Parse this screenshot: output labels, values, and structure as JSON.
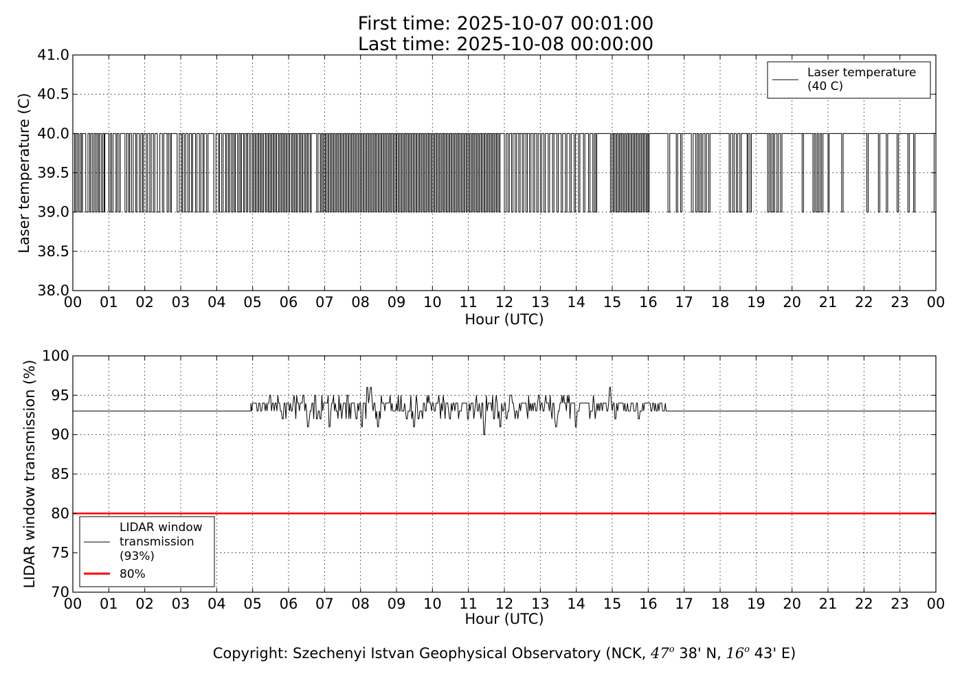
{
  "header": {
    "title_line1": "First time: 2025-10-07 00:01:00",
    "title_line2": "Last time: 2025-10-08 00:00:00"
  },
  "footer": {
    "copyright_prefix": "Copyright: Szechenyi Istvan Geophysical Observatory (NCK, ",
    "lat_deg": "47",
    "lat_min": " 38' N, ",
    "lon_deg": "16",
    "lon_min": " 43' E)",
    "degree_symbol": "o"
  },
  "chart_data": [
    {
      "type": "line",
      "xlabel": "Hour (UTC)",
      "ylabel": "Laser temperature (C)",
      "xlim": [
        0,
        24
      ],
      "ylim": [
        38.0,
        41.0
      ],
      "x_tick_labels": [
        "00",
        "01",
        "02",
        "03",
        "04",
        "05",
        "06",
        "07",
        "08",
        "09",
        "10",
        "11",
        "12",
        "13",
        "14",
        "15",
        "16",
        "17",
        "18",
        "19",
        "20",
        "21",
        "22",
        "23",
        "00"
      ],
      "y_ticks": [
        "38.0",
        "38.5",
        "39.0",
        "39.5",
        "40.0",
        "40.5",
        "41.0"
      ],
      "grid": true,
      "legend_placement": "top-right",
      "legend": {
        "line1": "Laser temperature",
        "line2": "(40 C)"
      },
      "series": [
        {
          "name": "Laser temperature (40 C)",
          "color": "#000000",
          "baseline": 40.0,
          "low_value": 39.0,
          "drop_intervals": [
            [
              0.0,
              0.05
            ],
            [
              0.08,
              0.12
            ],
            [
              0.16,
              0.2
            ],
            [
              0.24,
              0.27
            ],
            [
              0.36,
              0.42
            ],
            [
              0.47,
              0.5
            ],
            [
              0.55,
              0.59
            ],
            [
              0.63,
              0.67
            ],
            [
              0.71,
              0.74
            ],
            [
              0.79,
              0.83
            ],
            [
              0.87,
              0.89
            ],
            [
              1.0,
              1.04
            ],
            [
              1.08,
              1.12
            ],
            [
              1.2,
              1.23
            ],
            [
              1.28,
              1.32
            ],
            [
              1.45,
              1.5
            ],
            [
              1.55,
              1.58
            ],
            [
              1.63,
              1.68
            ],
            [
              1.75,
              1.78
            ],
            [
              1.85,
              1.89
            ],
            [
              1.94,
              1.97
            ],
            [
              2.04,
              2.08
            ],
            [
              2.14,
              2.18
            ],
            [
              2.24,
              2.28
            ],
            [
              2.35,
              2.42
            ],
            [
              2.49,
              2.53
            ],
            [
              2.62,
              2.66
            ],
            [
              2.71,
              2.74
            ],
            [
              2.9,
              2.96
            ],
            [
              3.02,
              3.05
            ],
            [
              3.1,
              3.14
            ],
            [
              3.2,
              3.24
            ],
            [
              3.3,
              3.33
            ],
            [
              3.41,
              3.45
            ],
            [
              3.52,
              3.56
            ],
            [
              3.62,
              3.65
            ],
            [
              3.72,
              3.76
            ],
            [
              3.92,
              3.98
            ],
            [
              4.05,
              4.08
            ],
            [
              4.14,
              4.18
            ],
            [
              4.25,
              4.28
            ],
            [
              4.33,
              4.36
            ],
            [
              4.41,
              4.45
            ],
            [
              4.49,
              4.52
            ],
            [
              4.58,
              4.62
            ],
            [
              4.66,
              4.69
            ],
            [
              4.75,
              4.78
            ],
            [
              4.83,
              4.86
            ],
            [
              4.91,
              4.95
            ],
            [
              5.0,
              5.03
            ],
            [
              5.07,
              5.1
            ],
            [
              5.14,
              5.17
            ],
            [
              5.21,
              5.24
            ],
            [
              5.28,
              5.31
            ],
            [
              5.36,
              5.39
            ],
            [
              5.43,
              5.46
            ],
            [
              5.5,
              5.53
            ],
            [
              5.57,
              5.6
            ],
            [
              5.64,
              5.67
            ],
            [
              5.72,
              5.75
            ],
            [
              5.79,
              5.82
            ],
            [
              5.86,
              5.89
            ],
            [
              5.93,
              5.96
            ],
            [
              6.0,
              6.03
            ],
            [
              6.08,
              6.11
            ],
            [
              6.15,
              6.18
            ],
            [
              6.22,
              6.25
            ],
            [
              6.3,
              6.33
            ],
            [
              6.37,
              6.4
            ],
            [
              6.45,
              6.48
            ],
            [
              6.52,
              6.55
            ],
            [
              6.6,
              6.63
            ],
            [
              6.78,
              6.82
            ],
            [
              6.88,
              6.91
            ],
            [
              6.95,
              6.98
            ],
            [
              7.02,
              7.05
            ],
            [
              7.09,
              7.12
            ],
            [
              7.16,
              7.19
            ],
            [
              7.23,
              7.26
            ],
            [
              7.3,
              7.33
            ],
            [
              7.37,
              7.4
            ],
            [
              7.44,
              7.47
            ],
            [
              7.51,
              7.54
            ],
            [
              7.58,
              7.61
            ],
            [
              7.65,
              7.68
            ],
            [
              7.72,
              7.75
            ],
            [
              7.79,
              7.82
            ],
            [
              7.86,
              7.89
            ],
            [
              7.93,
              7.96
            ],
            [
              8.0,
              8.03
            ],
            [
              8.07,
              8.1
            ],
            [
              8.14,
              8.17
            ],
            [
              8.21,
              8.24
            ],
            [
              8.28,
              8.31
            ],
            [
              8.35,
              8.38
            ],
            [
              8.42,
              8.45
            ],
            [
              8.49,
              8.52
            ],
            [
              8.56,
              8.59
            ],
            [
              8.63,
              8.66
            ],
            [
              8.7,
              8.73
            ],
            [
              8.77,
              8.8
            ],
            [
              8.84,
              8.87
            ],
            [
              8.91,
              8.94
            ],
            [
              8.98,
              9.01
            ],
            [
              9.05,
              9.08
            ],
            [
              9.12,
              9.15
            ],
            [
              9.19,
              9.22
            ],
            [
              9.26,
              9.29
            ],
            [
              9.33,
              9.36
            ],
            [
              9.4,
              9.43
            ],
            [
              9.47,
              9.5
            ],
            [
              9.54,
              9.57
            ],
            [
              9.61,
              9.64
            ],
            [
              9.68,
              9.71
            ],
            [
              9.75,
              9.78
            ],
            [
              9.82,
              9.85
            ],
            [
              9.89,
              9.92
            ],
            [
              9.96,
              9.99
            ],
            [
              10.03,
              10.06
            ],
            [
              10.1,
              10.13
            ],
            [
              10.17,
              10.2
            ],
            [
              10.24,
              10.27
            ],
            [
              10.31,
              10.34
            ],
            [
              10.38,
              10.41
            ],
            [
              10.45,
              10.48
            ],
            [
              10.52,
              10.55
            ],
            [
              10.59,
              10.62
            ],
            [
              10.66,
              10.69
            ],
            [
              10.73,
              10.76
            ],
            [
              10.8,
              10.83
            ],
            [
              10.87,
              10.9
            ],
            [
              10.94,
              10.97
            ],
            [
              11.01,
              11.04
            ],
            [
              11.08,
              11.11
            ],
            [
              11.15,
              11.18
            ],
            [
              11.22,
              11.25
            ],
            [
              11.29,
              11.32
            ],
            [
              11.36,
              11.39
            ],
            [
              11.43,
              11.46
            ],
            [
              11.5,
              11.53
            ],
            [
              11.57,
              11.6
            ],
            [
              11.64,
              11.67
            ],
            [
              11.71,
              11.74
            ],
            [
              11.78,
              11.81
            ],
            [
              11.85,
              11.88
            ],
            [
              12.0,
              12.05
            ],
            [
              12.1,
              12.14
            ],
            [
              12.2,
              12.24
            ],
            [
              12.3,
              12.34
            ],
            [
              12.4,
              12.44
            ],
            [
              12.5,
              12.54
            ],
            [
              12.6,
              12.64
            ],
            [
              12.7,
              12.74
            ],
            [
              12.8,
              12.84
            ],
            [
              12.9,
              12.94
            ],
            [
              13.0,
              13.04
            ],
            [
              13.1,
              13.14
            ],
            [
              13.22,
              13.26
            ],
            [
              13.34,
              13.38
            ],
            [
              13.46,
              13.5
            ],
            [
              13.58,
              13.62
            ],
            [
              13.7,
              13.74
            ],
            [
              13.82,
              13.86
            ],
            [
              13.94,
              13.98
            ],
            [
              14.06,
              14.1
            ],
            [
              14.2,
              14.24
            ],
            [
              14.34,
              14.38
            ],
            [
              14.46,
              14.5
            ],
            [
              14.54,
              14.57
            ],
            [
              14.95,
              14.99
            ],
            [
              15.03,
              15.06
            ],
            [
              15.1,
              15.13
            ],
            [
              15.17,
              15.2
            ],
            [
              15.24,
              15.27
            ],
            [
              15.31,
              15.34
            ],
            [
              15.38,
              15.41
            ],
            [
              15.45,
              15.48
            ],
            [
              15.52,
              15.55
            ],
            [
              15.59,
              15.62
            ],
            [
              15.66,
              15.69
            ],
            [
              15.73,
              15.76
            ],
            [
              15.8,
              15.83
            ],
            [
              15.87,
              15.9
            ],
            [
              15.94,
              15.97
            ],
            [
              16.0,
              16.03
            ],
            [
              16.55,
              16.6
            ],
            [
              16.78,
              16.82
            ],
            [
              16.9,
              16.94
            ],
            [
              17.2,
              17.25
            ],
            [
              17.32,
              17.36
            ],
            [
              17.4,
              17.44
            ],
            [
              17.48,
              17.52
            ],
            [
              17.58,
              17.62
            ],
            [
              17.68,
              17.72
            ],
            [
              18.25,
              18.29
            ],
            [
              18.35,
              18.39
            ],
            [
              18.45,
              18.49
            ],
            [
              18.55,
              18.59
            ],
            [
              18.75,
              18.78
            ],
            [
              18.83,
              18.87
            ],
            [
              19.32,
              19.36
            ],
            [
              19.4,
              19.44
            ],
            [
              19.48,
              19.52
            ],
            [
              19.58,
              19.62
            ],
            [
              19.68,
              19.72
            ],
            [
              20.28,
              20.32
            ],
            [
              20.58,
              20.62
            ],
            [
              20.66,
              20.7
            ],
            [
              20.74,
              20.78
            ],
            [
              20.82,
              20.86
            ],
            [
              21.0,
              21.03
            ],
            [
              21.38,
              21.42
            ],
            [
              22.08,
              22.12
            ],
            [
              22.4,
              22.44
            ],
            [
              22.62,
              22.66
            ],
            [
              22.92,
              22.96
            ],
            [
              23.22,
              23.26
            ],
            [
              23.38,
              23.42
            ],
            [
              23.95,
              24.0
            ]
          ]
        }
      ]
    },
    {
      "type": "line",
      "xlabel": "Hour (UTC)",
      "ylabel": "LIDAR window transmission (%)",
      "xlim": [
        0,
        24
      ],
      "ylim": [
        70,
        100
      ],
      "x_tick_labels": [
        "00",
        "01",
        "02",
        "03",
        "04",
        "05",
        "06",
        "07",
        "08",
        "09",
        "10",
        "11",
        "12",
        "13",
        "14",
        "15",
        "16",
        "17",
        "18",
        "19",
        "20",
        "21",
        "22",
        "23",
        "00"
      ],
      "y_ticks": [
        "70",
        "75",
        "80",
        "85",
        "90",
        "95",
        "100"
      ],
      "grid": true,
      "legend_placement": "lower-left",
      "legend": {
        "line1": "LIDAR window",
        "line2": "transmission",
        "line3": "(93%)",
        "threshold_label": "80%"
      },
      "series": [
        {
          "name": "LIDAR window transmission (93%)",
          "color": "#000000",
          "baseline": 93,
          "active_range": [
            4.95,
            16.5
          ],
          "notable_points": [
            {
              "x": 5.5,
              "y": 95
            },
            {
              "x": 5.85,
              "y": 92
            },
            {
              "x": 6.55,
              "y": 91
            },
            {
              "x": 6.75,
              "y": 95
            },
            {
              "x": 7.15,
              "y": 91
            },
            {
              "x": 8.05,
              "y": 91
            },
            {
              "x": 8.2,
              "y": 96
            },
            {
              "x": 8.3,
              "y": 96
            },
            {
              "x": 8.5,
              "y": 91
            },
            {
              "x": 9.5,
              "y": 91
            },
            {
              "x": 10.5,
              "y": 92
            },
            {
              "x": 11.45,
              "y": 90
            },
            {
              "x": 11.9,
              "y": 91
            },
            {
              "x": 12.2,
              "y": 95
            },
            {
              "x": 13.45,
              "y": 91
            },
            {
              "x": 14.0,
              "y": 91
            },
            {
              "x": 14.95,
              "y": 96
            },
            {
              "x": 15.1,
              "y": 92
            },
            {
              "x": 15.75,
              "y": 92
            }
          ]
        },
        {
          "name": "80%",
          "color": "#ff0000",
          "y": 80
        }
      ]
    }
  ]
}
